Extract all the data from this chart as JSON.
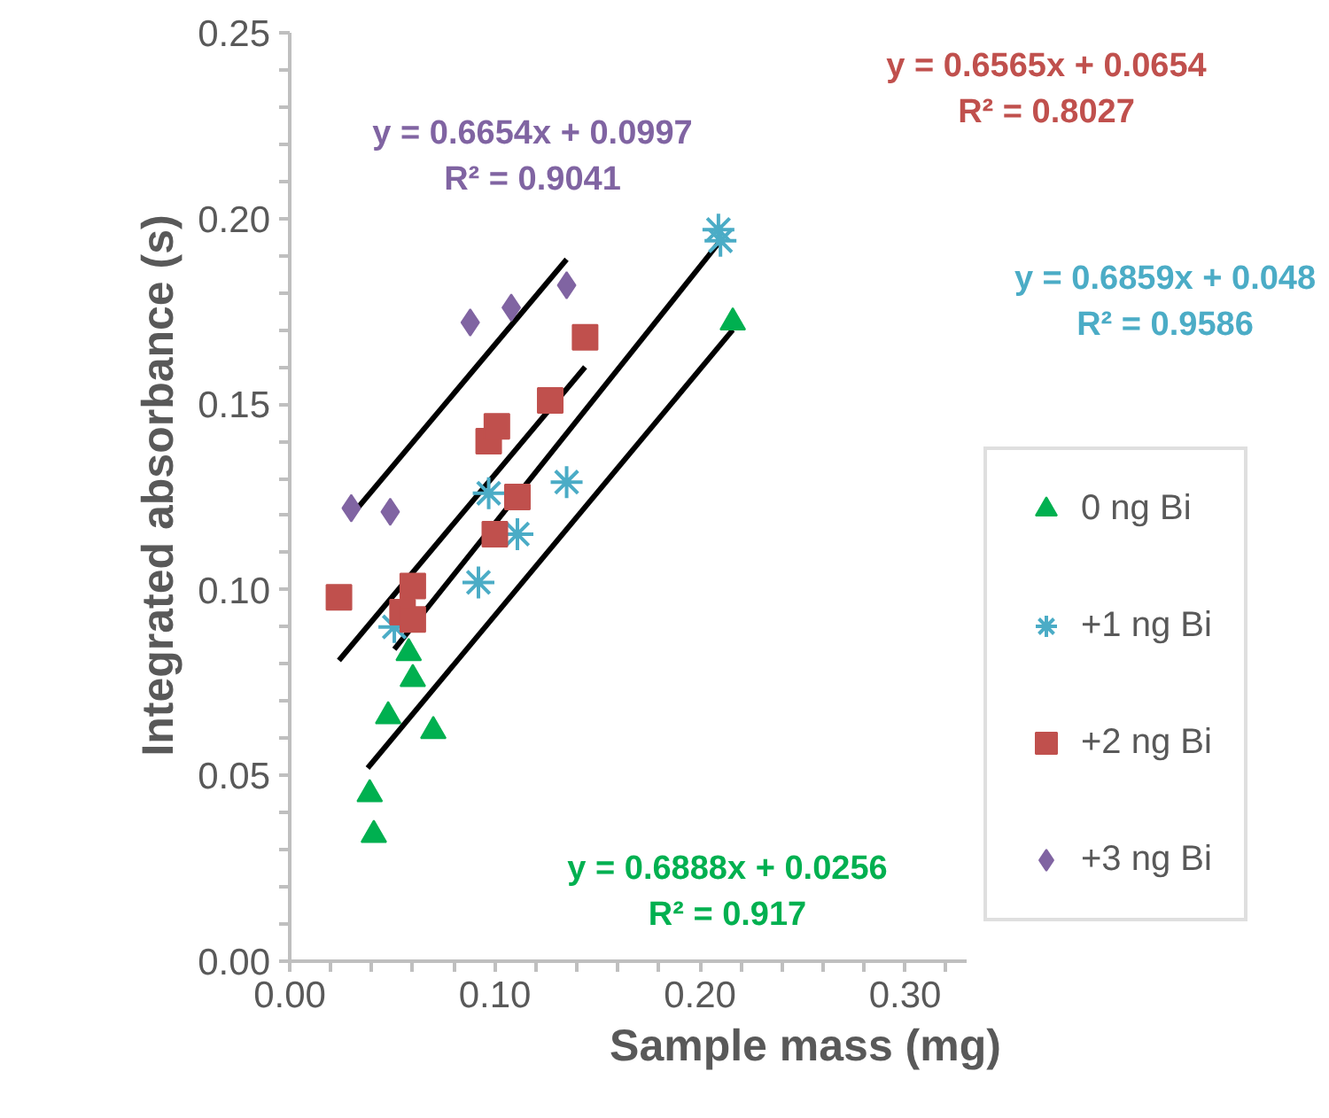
{
  "chart_data": {
    "type": "scatter",
    "xlabel": "Sample mass (mg)",
    "ylabel": "Integrated absorbance (s)",
    "xlim": [
      0,
      0.33
    ],
    "ylim": [
      0,
      0.25
    ],
    "xticks": [
      {
        "value": 0,
        "label": "0.00"
      },
      {
        "value": 0.02,
        "label": null
      },
      {
        "value": 0.04,
        "label": null
      },
      {
        "value": 0.06,
        "label": null
      },
      {
        "value": 0.08,
        "label": null
      },
      {
        "value": 0.1,
        "label": "0.10"
      },
      {
        "value": 0.12,
        "label": null
      },
      {
        "value": 0.14,
        "label": null
      },
      {
        "value": 0.16,
        "label": null
      },
      {
        "value": 0.18,
        "label": null
      },
      {
        "value": 0.2,
        "label": "0.20"
      },
      {
        "value": 0.22,
        "label": null
      },
      {
        "value": 0.24,
        "label": null
      },
      {
        "value": 0.26,
        "label": null
      },
      {
        "value": 0.28,
        "label": null
      },
      {
        "value": 0.3,
        "label": "0.30"
      },
      {
        "value": 0.32,
        "label": null
      }
    ],
    "yticks": [
      {
        "value": 0,
        "label": "0.00"
      },
      {
        "value": 0.01,
        "label": null
      },
      {
        "value": 0.02,
        "label": null
      },
      {
        "value": 0.03,
        "label": null
      },
      {
        "value": 0.04,
        "label": null
      },
      {
        "value": 0.05,
        "label": "0.05"
      },
      {
        "value": 0.06,
        "label": null
      },
      {
        "value": 0.07,
        "label": null
      },
      {
        "value": 0.08,
        "label": null
      },
      {
        "value": 0.09,
        "label": null
      },
      {
        "value": 0.1,
        "label": "0.10"
      },
      {
        "value": 0.11,
        "label": null
      },
      {
        "value": 0.12,
        "label": null
      },
      {
        "value": 0.13,
        "label": null
      },
      {
        "value": 0.14,
        "label": null
      },
      {
        "value": 0.15,
        "label": "0.15"
      },
      {
        "value": 0.16,
        "label": null
      },
      {
        "value": 0.17,
        "label": null
      },
      {
        "value": 0.18,
        "label": null
      },
      {
        "value": 0.19,
        "label": null
      },
      {
        "value": 0.2,
        "label": "0.20"
      },
      {
        "value": 0.21,
        "label": null
      },
      {
        "value": 0.22,
        "label": null
      },
      {
        "value": 0.23,
        "label": null
      },
      {
        "value": 0.24,
        "label": null
      },
      {
        "value": 0.25,
        "label": "0.25"
      }
    ],
    "grid": false,
    "legend": "right",
    "series": [
      {
        "name": "0 ng Bi",
        "marker": "triangle",
        "color": "#00b050",
        "x": [
          0.216,
          0.058,
          0.06,
          0.048,
          0.07,
          0.039,
          0.041
        ],
        "values": [
          0.172,
          0.083,
          0.076,
          0.066,
          0.062,
          0.045,
          0.034
        ]
      },
      {
        "name": "+1 ng Bi",
        "marker": "cross",
        "color": "#4bacc6",
        "x": [
          0.209,
          0.21,
          0.051,
          0.097,
          0.111,
          0.092,
          0.135
        ],
        "values": [
          0.197,
          0.194,
          0.09,
          0.126,
          0.115,
          0.102,
          0.129
        ]
      },
      {
        "name": "+2 ng Bi",
        "marker": "square",
        "color": "#c0504d",
        "x": [
          0.024,
          0.06,
          0.055,
          0.06,
          0.097,
          0.101,
          0.1,
          0.111,
          0.127,
          0.144
        ],
        "values": [
          0.098,
          0.101,
          0.094,
          0.092,
          0.14,
          0.144,
          0.115,
          0.125,
          0.151,
          0.168
        ]
      },
      {
        "name": "+3 ng Bi",
        "marker": "diamond",
        "color": "#8064a2",
        "x": [
          0.03,
          0.049,
          0.088,
          0.108,
          0.135
        ],
        "values": [
          0.122,
          0.121,
          0.172,
          0.176,
          0.182
        ]
      },
      {
        "type": "line",
        "color": "#000000",
        "x": [
          0.038,
          0.216
        ],
        "values": [
          0.052,
          0.17
        ]
      },
      {
        "type": "line",
        "color": "#000000",
        "x": [
          0.051,
          0.21
        ],
        "values": [
          0.084,
          0.194
        ]
      },
      {
        "type": "line",
        "color": "#000000",
        "x": [
          0.024,
          0.144
        ],
        "values": [
          0.081,
          0.16
        ]
      },
      {
        "type": "line",
        "color": "#000000",
        "x": [
          0.03,
          0.135
        ],
        "values": [
          0.12,
          0.189
        ]
      }
    ],
    "annotations": [
      "y = 0.6888x + 0.0256\nR² = 0.917",
      "y = 0.6859x + 0.048\nR² = 0.9586",
      "y = 0.6565x + 0.0654\nR² = 0.8027",
      "y = 0.6654x + 0.0997\nR² = 0.9041"
    ]
  }
}
